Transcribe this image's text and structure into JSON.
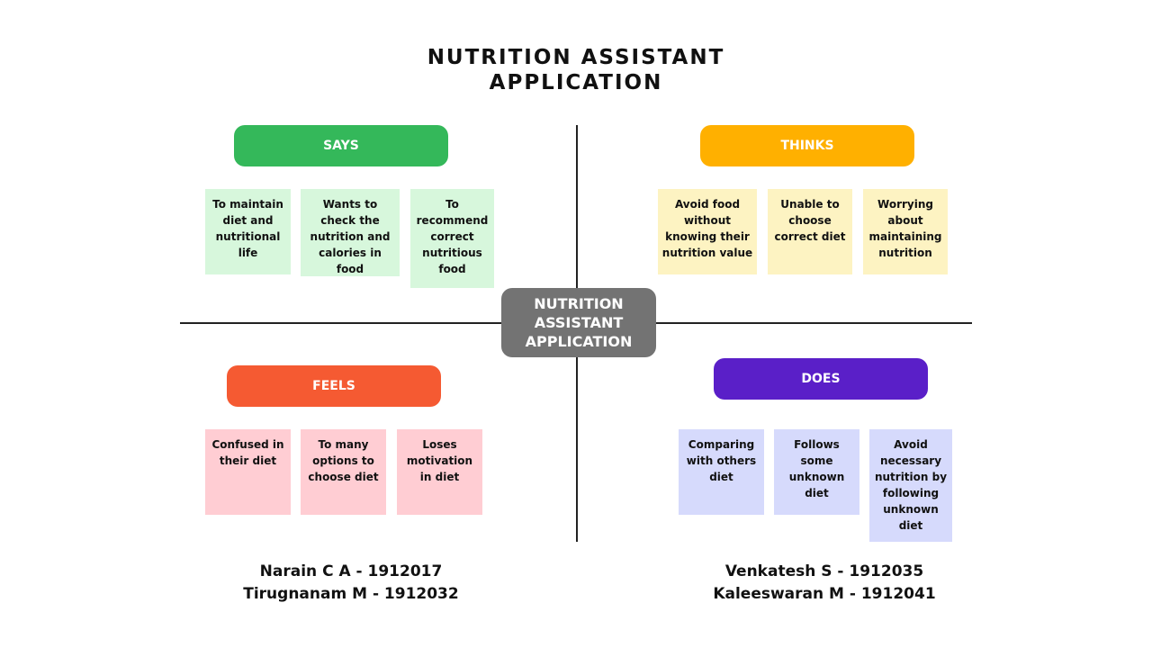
{
  "title": [
    "NUTRITION ASSISTANT",
    "APPLICATION"
  ],
  "center_label": [
    "NUTRITION",
    "ASSISTANT",
    "APPLICATION"
  ],
  "quadrants": {
    "says": {
      "label": "SAYS",
      "color": "#34b85a",
      "notes": [
        [
          "To maintain",
          "diet and",
          "nutritional",
          "life"
        ],
        [
          "Wants to",
          "check the",
          "nutrition and",
          "calories in food"
        ],
        [
          "To",
          "recommend",
          "correct",
          "nutritious",
          "food"
        ]
      ]
    },
    "thinks": {
      "label": "THINKS",
      "color": "#ffb000",
      "notes": [
        [
          "Avoid food",
          "without",
          "knowing their",
          "nutrition value"
        ],
        [
          "Unable to",
          "choose",
          "correct diet"
        ],
        [
          "Worrying",
          "about",
          "maintaining",
          "nutrition"
        ]
      ]
    },
    "feels": {
      "label": "FEELS",
      "color": "#f55a32",
      "notes": [
        [
          "Confused in",
          "their diet"
        ],
        [
          "To many",
          "options to",
          "choose diet"
        ],
        [
          "Loses",
          "motivation",
          "in diet"
        ]
      ]
    },
    "does": {
      "label": "DOES",
      "color": "#5a1fc8",
      "notes": [
        [
          "Comparing",
          "with others",
          "diet"
        ],
        [
          "Follows",
          "some",
          "unknown",
          "diet"
        ],
        [
          "Avoid",
          "necessary",
          "nutrition by",
          "following",
          "unknown",
          "diet"
        ]
      ]
    }
  },
  "team": {
    "left": [
      "Narain C A - 1912017",
      "Tirugnanam M - 1912032"
    ],
    "right": [
      "Venkatesh S - 1912035",
      "Kaleeswaran M - 1912041"
    ]
  }
}
